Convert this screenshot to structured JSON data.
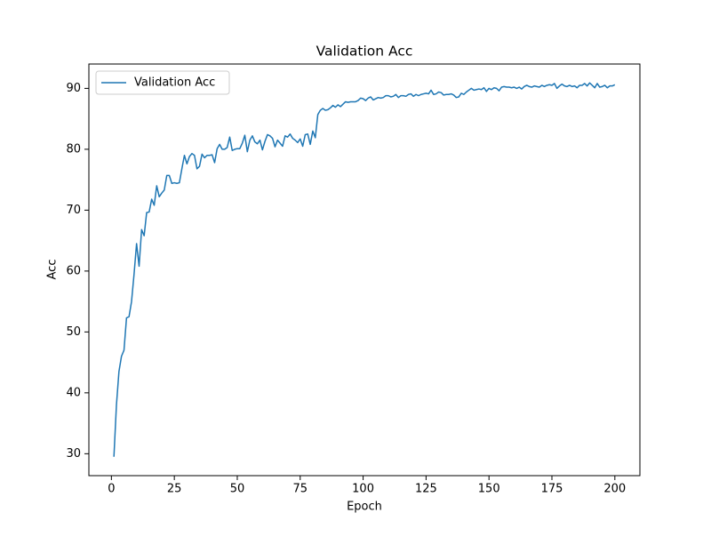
{
  "chart_data": {
    "type": "line",
    "title": "Validation Acc",
    "x_label": "Epoch",
    "y_label": "Acc",
    "x": [
      1,
      2,
      3,
      4,
      5,
      6,
      7,
      8,
      9,
      10,
      11,
      12,
      13,
      14,
      15,
      16,
      17,
      18,
      19,
      20,
      21,
      22,
      23,
      24,
      25,
      26,
      27,
      28,
      29,
      30,
      31,
      32,
      33,
      34,
      35,
      36,
      37,
      38,
      39,
      40,
      41,
      42,
      43,
      44,
      45,
      46,
      47,
      48,
      49,
      50,
      51,
      52,
      53,
      54,
      55,
      56,
      57,
      58,
      59,
      60,
      61,
      62,
      63,
      64,
      65,
      66,
      67,
      68,
      69,
      70,
      71,
      72,
      73,
      74,
      75,
      76,
      77,
      78,
      79,
      80,
      81,
      82,
      83,
      84,
      85,
      86,
      87,
      88,
      89,
      90,
      91,
      92,
      93,
      94,
      95,
      96,
      97,
      98,
      99,
      100,
      101,
      102,
      103,
      104,
      105,
      106,
      107,
      108,
      109,
      110,
      111,
      112,
      113,
      114,
      115,
      116,
      117,
      118,
      119,
      120,
      121,
      122,
      123,
      124,
      125,
      126,
      127,
      128,
      129,
      130,
      131,
      132,
      133,
      134,
      135,
      136,
      137,
      138,
      139,
      140,
      141,
      142,
      143,
      144,
      145,
      146,
      147,
      148,
      149,
      150,
      151,
      152,
      153,
      154,
      155,
      156,
      157,
      158,
      159,
      160,
      161,
      162,
      163,
      164,
      165,
      166,
      167,
      168,
      169,
      170,
      171,
      172,
      173,
      174,
      175,
      176,
      177,
      178,
      179,
      180,
      181,
      182,
      183,
      184,
      185,
      186,
      187,
      188,
      189,
      190,
      191,
      192,
      193,
      194,
      195,
      196,
      197,
      198,
      199,
      200
    ],
    "series": [
      {
        "name": "Validation Acc",
        "color": "#1f77b4",
        "values": [
          29.5,
          38,
          43.5,
          46,
          47,
          52.3,
          52.5,
          55,
          59.5,
          64.5,
          60.8,
          66.8,
          65.8,
          69.6,
          69.7,
          71.8,
          70.8,
          74,
          72.2,
          72.8,
          73.3,
          75.7,
          75.7,
          74.4,
          74.5,
          74.4,
          74.5,
          76.8,
          79,
          77.6,
          78.8,
          79.3,
          79,
          76.8,
          77.2,
          79.2,
          78.6,
          79,
          79,
          79.1,
          77.8,
          80.1,
          80.8,
          80,
          80,
          80.3,
          82,
          79.8,
          80,
          80.1,
          80.1,
          81,
          82.3,
          79.6,
          81.5,
          82.2,
          81.2,
          80.9,
          81.5,
          79.9,
          81.3,
          82.4,
          82.2,
          81.8,
          80.4,
          81.5,
          81,
          80.5,
          82.2,
          82,
          82.5,
          81.8,
          81.5,
          81.1,
          81.7,
          80.5,
          82.4,
          82.5,
          80.8,
          83,
          81.9,
          85.7,
          86.4,
          86.7,
          86.4,
          86.5,
          86.8,
          87.2,
          86.9,
          87.3,
          87,
          87.4,
          87.8,
          87.7,
          87.8,
          87.8,
          87.8,
          88,
          88.4,
          88.3,
          88,
          88.4,
          88.6,
          88.1,
          88.3,
          88.5,
          88.4,
          88.5,
          88.8,
          88.8,
          88.6,
          88.7,
          89,
          88.5,
          88.8,
          88.8,
          88.7,
          89,
          89.1,
          88.7,
          89,
          88.8,
          89,
          89.1,
          89.2,
          89.1,
          89.7,
          89,
          89.1,
          89.4,
          89.3,
          88.9,
          89,
          89,
          89.1,
          88.9,
          88.5,
          88.6,
          89.2,
          89,
          89.4,
          89.7,
          90,
          89.7,
          89.8,
          89.9,
          89.8,
          90.1,
          89.5,
          90,
          89.8,
          90.1,
          90,
          89.6,
          90.2,
          90.3,
          90.2,
          90.2,
          90.1,
          90.2,
          90,
          90.2,
          89.9,
          90.3,
          90.5,
          90.3,
          90.2,
          90.4,
          90.3,
          90.2,
          90.5,
          90.3,
          90.5,
          90.6,
          90.5,
          90.8,
          90,
          90.4,
          90.7,
          90.4,
          90.3,
          90.5,
          90.3,
          90.4,
          90.1,
          90.5,
          90.5,
          90.8,
          90.4,
          90.9,
          90.5,
          90.1,
          90.8,
          90.2,
          90.3,
          90.5,
          90.1,
          90.4,
          90.4,
          90.6
        ]
      }
    ],
    "xlim": [
      -8.95,
      209.95
    ],
    "xticks": [
      0,
      25,
      50,
      75,
      100,
      125,
      150,
      175,
      200
    ],
    "ylim": [
      26.4,
      94.0
    ],
    "yticks": [
      30,
      40,
      50,
      60,
      70,
      80,
      90
    ],
    "legend": "upper left"
  }
}
